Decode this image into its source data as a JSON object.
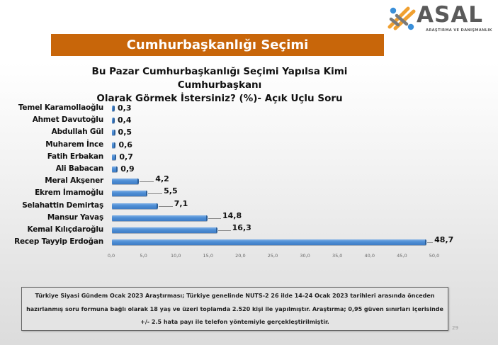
{
  "logo": {
    "name": "ASAL",
    "subtitle": "ARAŞTIRMA VE DANIŞMANLIK",
    "colors": {
      "blue": "#3a8fd9",
      "orange": "#f0a030",
      "gray": "#5a5a5a"
    }
  },
  "banner": {
    "title": "Cumhurbaşkanlığı Seçimi",
    "color": "#c8660a"
  },
  "chart_title": {
    "line1": "Bu Pazar Cumhurbaşkanlığı Seçimi Yapılsa Kimi Cumhurbaşkanı",
    "line2": "Olarak Görmek İstersiniz? (%)- Açık Uçlu Soru"
  },
  "chart_data": {
    "type": "bar",
    "orientation": "horizontal",
    "title": "Bu Pazar Cumhurbaşkanlığı Seçimi Yapılsa Kimi Cumhurbaşkanı Olarak Görmek İstersiniz? (%)- Açık Uçlu Soru",
    "xlabel": "",
    "ylabel": "",
    "xlim": [
      0,
      50
    ],
    "grid": false,
    "legend": null,
    "bar_color": "#4f8fd6",
    "categories": [
      "Temel Karamollaoğlu",
      "Ahmet Davutoğlu",
      "Abdullah Gül",
      "Muharem İnce",
      "Fatih Erbakan",
      "Ali Babacan",
      "Meral Akşener",
      "Ekrem İmamoğlu",
      "Selahattin Demirtaş",
      "Mansur Yavaş",
      "Kemal Kılıçdaroğlu",
      "Recep Tayyip Erdoğan"
    ],
    "values": [
      0.3,
      0.4,
      0.5,
      0.6,
      0.7,
      0.9,
      4.2,
      5.5,
      7.1,
      14.8,
      16.3,
      48.7
    ],
    "value_labels": [
      "0,3",
      "0,4",
      "0,5",
      "0,6",
      "0,7",
      "0,9",
      "4,2",
      "5,5",
      "7,1",
      "14,8",
      "16,3",
      "48,7"
    ],
    "x_ticks": [
      "0,0",
      "5,0",
      "10,0",
      "15,0",
      "20,0",
      "25,0",
      "30,0",
      "35,0",
      "40,0",
      "45,0",
      "50,0"
    ]
  },
  "note": {
    "line1": "Türkiye Siyasi Gündem Ocak 2023 Araştırması; Türkiye genelinde NUTS-2 26 ilde 14-24 Ocak 2023 tarihleri arasında önceden",
    "line2": "hazırlanmış soru formuna bağlı olarak 18 yaş ve üzeri toplamda 2.520 kişi ile yapılmıştır. Araştırma; 0,95 güven sınırları içerisinde",
    "line3": "+/- 2.5  hata payı ile telefon yöntemiyle gerçekleştirilmiştir."
  },
  "page_number": "29"
}
